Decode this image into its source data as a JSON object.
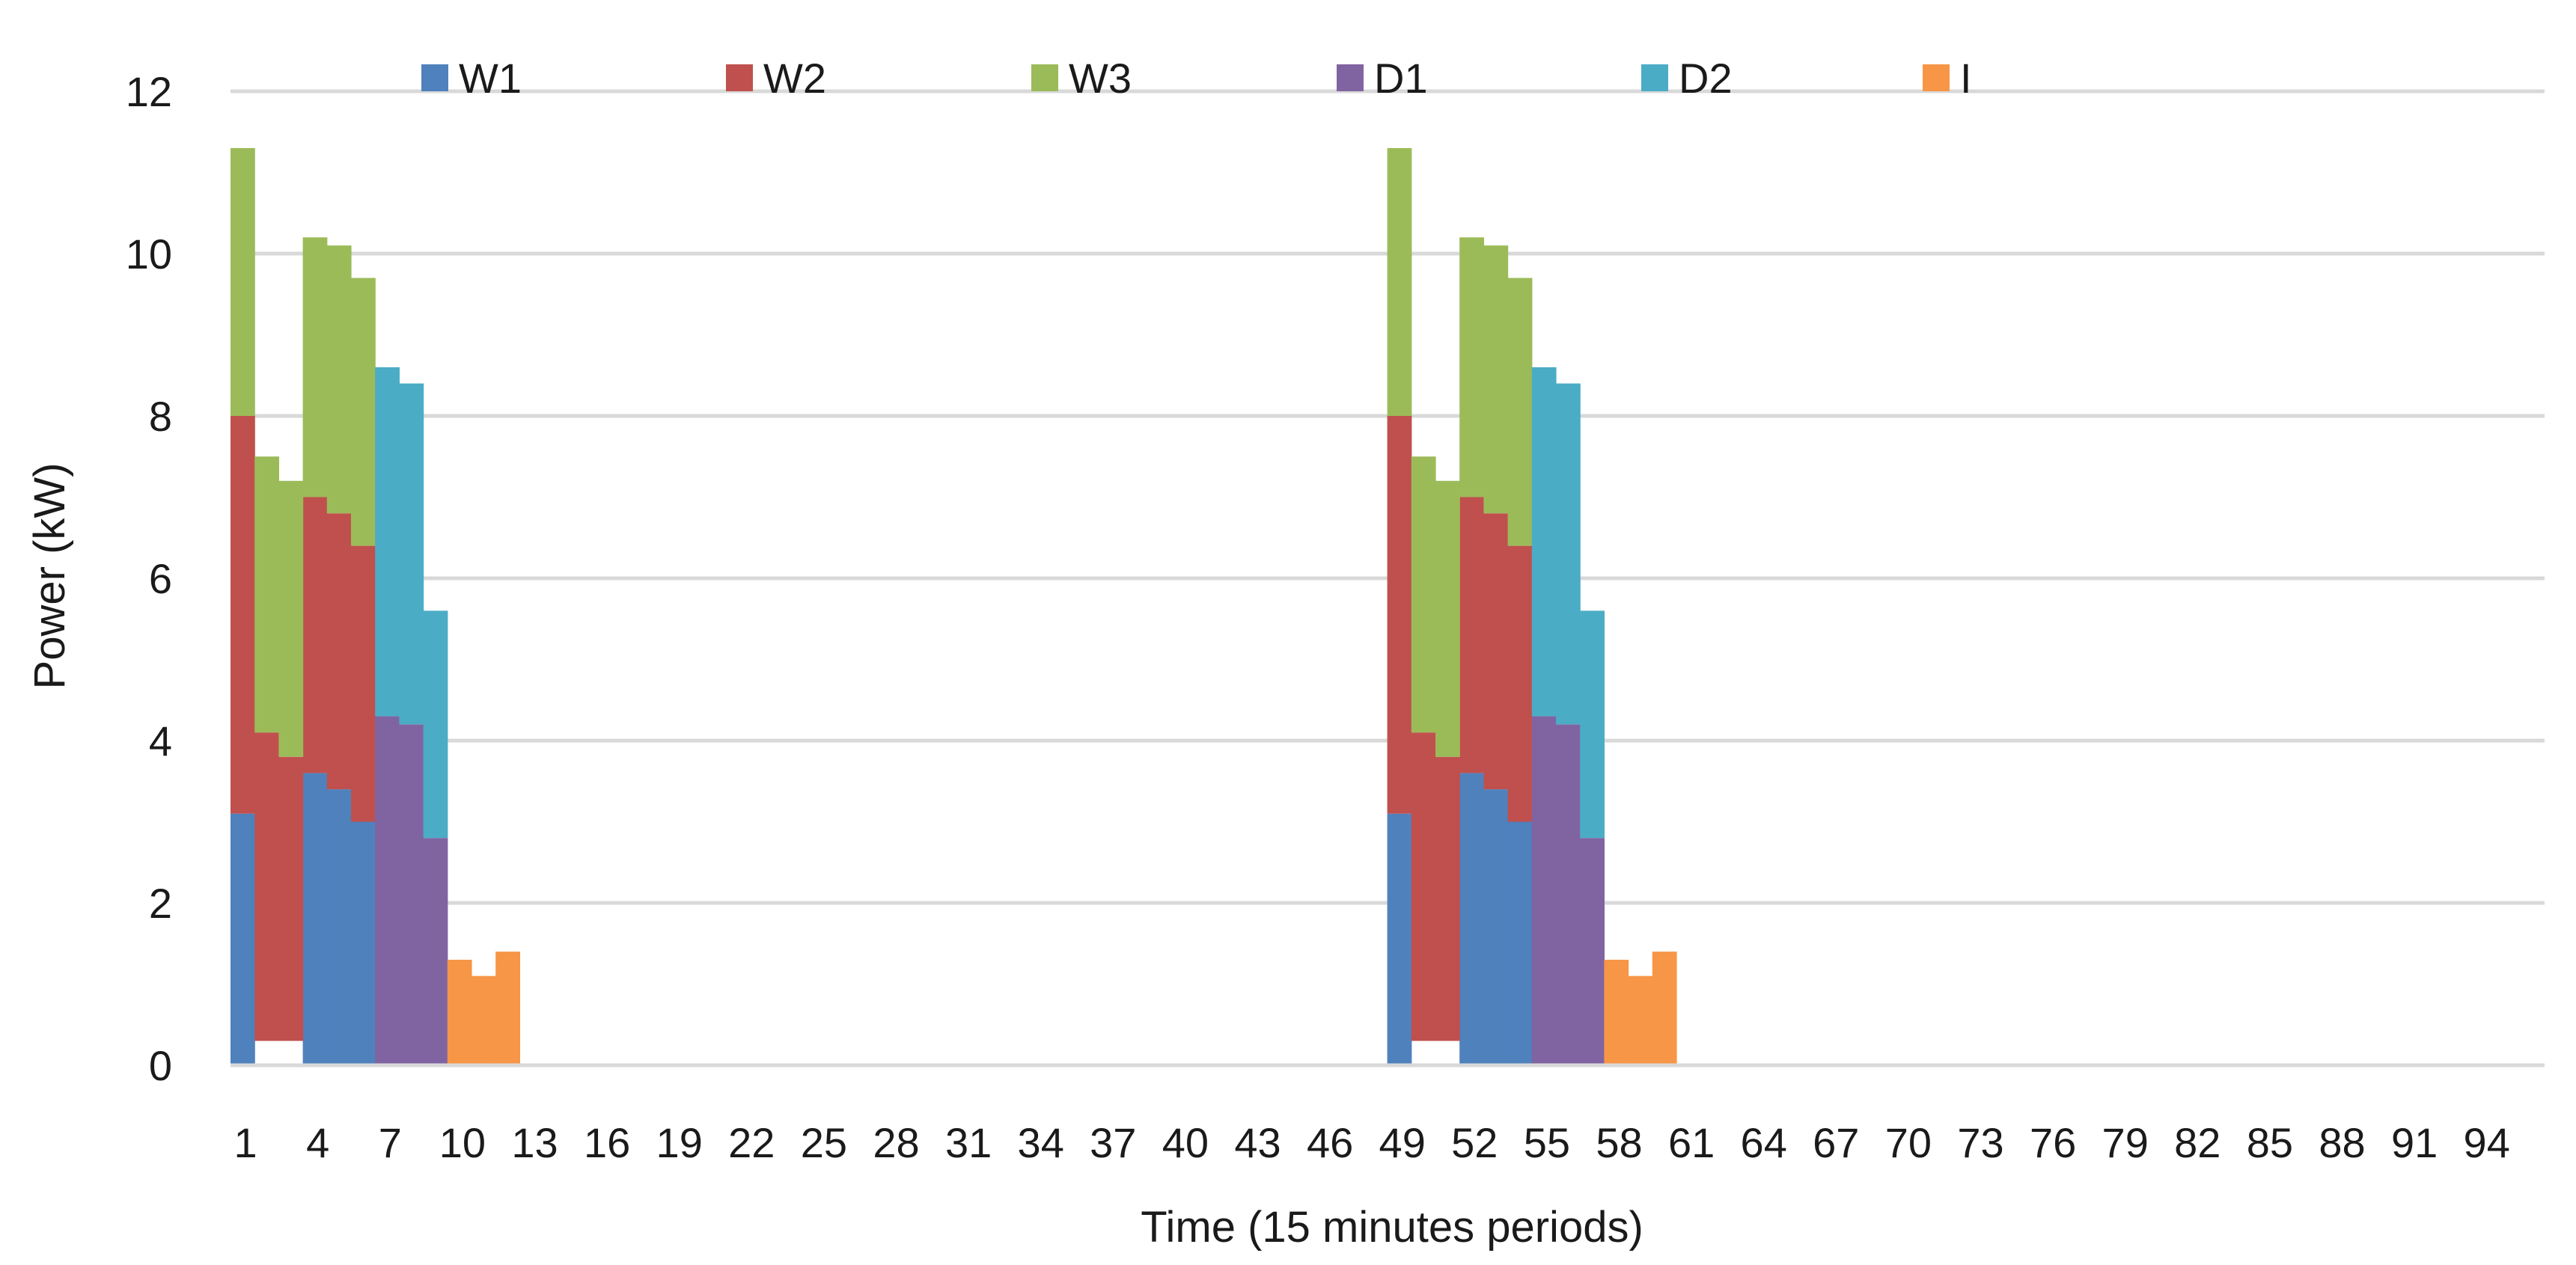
{
  "chart_data": {
    "type": "bar",
    "stacked": true,
    "title": "",
    "xlabel": "Time (15 minutes periods)",
    "ylabel": "Power (kW)",
    "ylim": [
      0,
      12
    ],
    "yticks": [
      0,
      2,
      4,
      6,
      8,
      10,
      12
    ],
    "grid": true,
    "legend_position": "top",
    "x_range": [
      1,
      96
    ],
    "x_tick_labels": [
      "1",
      "4",
      "7",
      "10",
      "13",
      "16",
      "19",
      "22",
      "25",
      "28",
      "31",
      "34",
      "37",
      "40",
      "43",
      "46",
      "49",
      "52",
      "55",
      "58",
      "61",
      "64",
      "67",
      "70",
      "73",
      "76",
      "79",
      "82",
      "85",
      "88",
      "91",
      "94"
    ],
    "series": [
      {
        "name": "W1",
        "color": "#4F81BD",
        "data": [
          [
            1,
            3.1
          ],
          [
            4,
            3.6
          ],
          [
            5,
            3.4
          ],
          [
            6,
            3.0
          ],
          [
            49,
            3.1
          ],
          [
            52,
            3.6
          ],
          [
            53,
            3.4
          ],
          [
            54,
            3.0
          ]
        ]
      },
      {
        "name": "W2",
        "color": "#C0504D",
        "data": [
          [
            1,
            4.9
          ],
          [
            2,
            3.8
          ],
          [
            3,
            3.5
          ],
          [
            4,
            3.4
          ],
          [
            5,
            3.4
          ],
          [
            6,
            3.4
          ],
          [
            49,
            4.9
          ],
          [
            50,
            3.8
          ],
          [
            51,
            3.5
          ],
          [
            52,
            3.4
          ],
          [
            53,
            3.4
          ],
          [
            54,
            3.4
          ]
        ]
      },
      {
        "name": "W3",
        "color": "#9BBB59",
        "data": [
          [
            1,
            3.3
          ],
          [
            2,
            3.4
          ],
          [
            3,
            3.4
          ],
          [
            4,
            3.2
          ],
          [
            5,
            3.3
          ],
          [
            6,
            3.3
          ],
          [
            49,
            3.3
          ],
          [
            50,
            3.4
          ],
          [
            51,
            3.4
          ],
          [
            52,
            3.2
          ],
          [
            53,
            3.3
          ],
          [
            54,
            3.3
          ]
        ]
      },
      {
        "name": "D1",
        "color": "#8064A2",
        "data": [
          [
            7,
            4.3
          ],
          [
            8,
            4.2
          ],
          [
            9,
            2.8
          ],
          [
            55,
            4.3
          ],
          [
            56,
            4.2
          ],
          [
            57,
            2.8
          ]
        ]
      },
      {
        "name": "D2",
        "color": "#4BACC6",
        "data": [
          [
            7,
            4.3
          ],
          [
            8,
            4.2
          ],
          [
            9,
            2.8
          ],
          [
            55,
            4.3
          ],
          [
            56,
            4.2
          ],
          [
            57,
            2.8
          ]
        ]
      },
      {
        "name": "I",
        "color": "#F79646",
        "data": [
          [
            10,
            1.3
          ],
          [
            11,
            1.1
          ],
          [
            12,
            1.4
          ],
          [
            58,
            1.3
          ],
          [
            59,
            1.1
          ],
          [
            60,
            1.4
          ]
        ]
      }
    ],
    "baseline_offsets": [
      [
        2,
        0.3
      ],
      [
        3,
        0.3
      ],
      [
        50,
        0.3
      ],
      [
        51,
        0.3
      ]
    ]
  }
}
